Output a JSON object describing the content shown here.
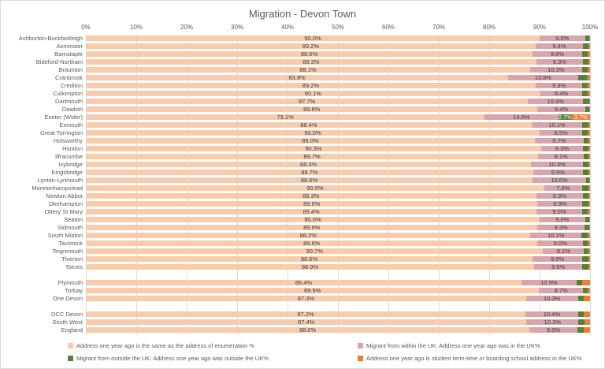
{
  "chart_data": {
    "type": "bar",
    "variant": "horizontal-stacked",
    "title": "Migration - Devon Town",
    "x_axis": {
      "position": "top",
      "min": 0,
      "max": 100,
      "ticks": [
        "0%",
        "10%",
        "20%",
        "30%",
        "40%",
        "50%",
        "60%",
        "70%",
        "80%",
        "90%",
        "100%"
      ],
      "grid": true
    },
    "legend": {
      "position": "bottom",
      "items": [
        {
          "name": "segment-same-address",
          "label": "Address one year ago is the same as the address of enumeration %",
          "color": "#F8CBAD"
        },
        {
          "name": "segment-migrant-within-uk",
          "label": "Migrant from within the UK: Address one year ago was in the UK%",
          "color": "#D8A5AB"
        },
        {
          "name": "segment-migrant-outside-uk",
          "label": "Migrant from outside the UK: Address one year ago was outside the UK%",
          "color": "#548235"
        },
        {
          "name": "segment-student-address",
          "label": "Address one year ago is student term-time or boarding school address in the UK%",
          "color": "#ED7D31"
        }
      ]
    },
    "sections": [
      {
        "rows": [
          {
            "label": "Ashburton-Buckfastleigh",
            "values": [
              90.0,
              9.0,
              0.8,
              0.2
            ],
            "data_labels": [
              "90.0%",
              "9.0%",
              "",
              ""
            ]
          },
          {
            "label": "Axminster",
            "values": [
              89.2,
              9.4,
              1.1,
              0.3
            ],
            "data_labels": [
              "89.2%",
              "9.4%",
              "",
              ""
            ]
          },
          {
            "label": "Barnstaple",
            "values": [
              88.6,
              9.8,
              1.2,
              0.4
            ],
            "data_labels": [
              "88.6%",
              "9.8%",
              "",
              ""
            ]
          },
          {
            "label": "Bideford-Northam",
            "values": [
              89.3,
              9.3,
              1.1,
              0.3
            ],
            "data_labels": [
              "89.3%",
              "9.3%",
              "",
              ""
            ]
          },
          {
            "label": "Braunton",
            "values": [
              88.1,
              10.3,
              1.1,
              0.5
            ],
            "data_labels": [
              "88.1%",
              "10.3%",
              "",
              ""
            ]
          },
          {
            "label": "Cranbrook",
            "values": [
              83.8,
              13.8,
              1.8,
              0.6
            ],
            "data_labels": [
              "83.8%",
              "13.8%",
              "",
              ""
            ]
          },
          {
            "label": "Crediton",
            "values": [
              89.2,
              9.3,
              1.1,
              0.4
            ],
            "data_labels": [
              "89.2%",
              "9.3%",
              "",
              ""
            ]
          },
          {
            "label": "Cullompton",
            "values": [
              90.1,
              8.4,
              1.1,
              0.4
            ],
            "data_labels": [
              "90.1%",
              "8.4%",
              "",
              ""
            ]
          },
          {
            "label": "Dartmouth",
            "values": [
              87.7,
              10.9,
              1.2,
              0.2
            ],
            "data_labels": [
              "87.7%",
              "10.9%",
              "",
              ""
            ]
          },
          {
            "label": "Dawlish",
            "values": [
              89.6,
              9.4,
              0.8,
              0.2
            ],
            "data_labels": [
              "89.6%",
              "9.4%",
              "",
              ""
            ]
          },
          {
            "label": "Exeter (Wider)",
            "values": [
              79.1,
              14.6,
              2.7,
              3.7
            ],
            "data_labels": [
              "79.1%",
              "14.6%",
              "2.7%",
              "3.7%"
            ]
          },
          {
            "label": "Exmouth",
            "values": [
              88.4,
              10.1,
              1.2,
              0.3
            ],
            "data_labels": [
              "88.4%",
              "10.1%",
              "",
              ""
            ]
          },
          {
            "label": "Great Torrington",
            "values": [
              90.0,
              8.5,
              1.1,
              0.4
            ],
            "data_labels": [
              "90.0%",
              "8.5%",
              "",
              ""
            ]
          },
          {
            "label": "Holsworthy",
            "values": [
              89.0,
              9.7,
              1.0,
              0.3
            ],
            "data_labels": [
              "89.0%",
              "9.7%",
              "",
              ""
            ]
          },
          {
            "label": "Honiton",
            "values": [
              90.3,
              8.3,
              1.1,
              0.3
            ],
            "data_labels": [
              "90.3%",
              "8.3%",
              "",
              ""
            ]
          },
          {
            "label": "Ilfracombe",
            "values": [
              89.7,
              9.1,
              0.9,
              0.3
            ],
            "data_labels": [
              "89.7%",
              "9.1%",
              "",
              ""
            ]
          },
          {
            "label": "Ivybridge",
            "values": [
              88.3,
              10.3,
              1.1,
              0.3
            ],
            "data_labels": [
              "88.3%",
              "10.3%",
              "",
              ""
            ]
          },
          {
            "label": "Kingsbridge",
            "values": [
              88.7,
              9.9,
              1.1,
              0.3
            ],
            "data_labels": [
              "88.7%",
              "9.9%",
              "",
              ""
            ]
          },
          {
            "label": "Lynton-Lynmouth",
            "values": [
              88.6,
              10.6,
              0.6,
              0.2
            ],
            "data_labels": [
              "88.6%",
              "10.6%",
              "",
              ""
            ]
          },
          {
            "label": "Moretonhampstead",
            "values": [
              90.9,
              7.5,
              1.3,
              0.3
            ],
            "data_labels": [
              "90.9%",
              "7.5%",
              "",
              ""
            ]
          },
          {
            "label": "Newton Abbot",
            "values": [
              89.3,
              9.3,
              1.1,
              0.3
            ],
            "data_labels": [
              "89.3%",
              "9.3%",
              "",
              ""
            ]
          },
          {
            "label": "Okehampton",
            "values": [
              89.6,
              8.9,
              1.2,
              0.3
            ],
            "data_labels": [
              "89.6%",
              "8.9%",
              "",
              ""
            ]
          },
          {
            "label": "Ottery St Mary",
            "values": [
              89.4,
              9.0,
              1.2,
              0.4
            ],
            "data_labels": [
              "89.4%",
              "9.0%",
              "",
              ""
            ]
          },
          {
            "label": "Seaton",
            "values": [
              90.0,
              9.0,
              0.8,
              0.2
            ],
            "data_labels": [
              "90.0%",
              "9.0%",
              "",
              ""
            ]
          },
          {
            "label": "Sidmouth",
            "values": [
              89.6,
              9.3,
              0.9,
              0.2
            ],
            "data_labels": [
              "89.6%",
              "9.3%",
              "",
              ""
            ]
          },
          {
            "label": "South Molton",
            "values": [
              88.2,
              10.1,
              1.3,
              0.4
            ],
            "data_labels": [
              "88.2%",
              "10.1%",
              "",
              ""
            ]
          },
          {
            "label": "Tavistock",
            "values": [
              89.6,
              9.0,
              1.0,
              0.4
            ],
            "data_labels": [
              "89.6%",
              "9.0%",
              "",
              ""
            ]
          },
          {
            "label": "Teignmouth",
            "values": [
              90.7,
              8.1,
              0.9,
              0.3
            ],
            "data_labels": [
              "90.7%",
              "8.1%",
              "",
              ""
            ]
          },
          {
            "label": "Tiverton",
            "values": [
              88.6,
              9.9,
              1.2,
              0.3
            ],
            "data_labels": [
              "88.6%",
              "9.9%",
              "",
              ""
            ]
          },
          {
            "label": "Totnes",
            "values": [
              88.9,
              9.6,
              1.2,
              0.3
            ],
            "data_labels": [
              "88.9%",
              "9.6%",
              "",
              ""
            ]
          }
        ]
      },
      {
        "rows": [
          {
            "label": "Plymouth",
            "values": [
              86.4,
              10.9,
              1.2,
              1.5
            ],
            "data_labels": [
              "86.4%",
              "10.9%",
              "",
              ""
            ]
          },
          {
            "label": "Torbay",
            "values": [
              89.9,
              8.7,
              1.0,
              0.4
            ],
            "data_labels": [
              "89.9%",
              "8.7%",
              "",
              ""
            ]
          },
          {
            "label": "One Devon",
            "values": [
              87.3,
              10.3,
              1.2,
              1.2
            ],
            "data_labels": [
              "87.3%",
              "10.3%",
              "",
              ""
            ]
          }
        ]
      },
      {
        "rows": [
          {
            "label": "DCC Devon",
            "values": [
              87.2,
              10.4,
              1.2,
              1.2
            ],
            "data_labels": [
              "87.2%",
              "10.4%",
              "",
              ""
            ]
          },
          {
            "label": "South West",
            "values": [
              87.4,
              10.3,
              1.2,
              1.1
            ],
            "data_labels": [
              "87.4%",
              "10.3%",
              "",
              ""
            ]
          },
          {
            "label": "England",
            "values": [
              88.0,
              9.5,
              1.3,
              1.2
            ],
            "data_labels": [
              "88.0%",
              "9.5%",
              "",
              ""
            ]
          }
        ]
      }
    ]
  },
  "colors": {
    "title_text": "#595959",
    "axis_text": "#595959",
    "data_label_text": "#3f3f3f",
    "gridline": "#dcdcdc"
  }
}
